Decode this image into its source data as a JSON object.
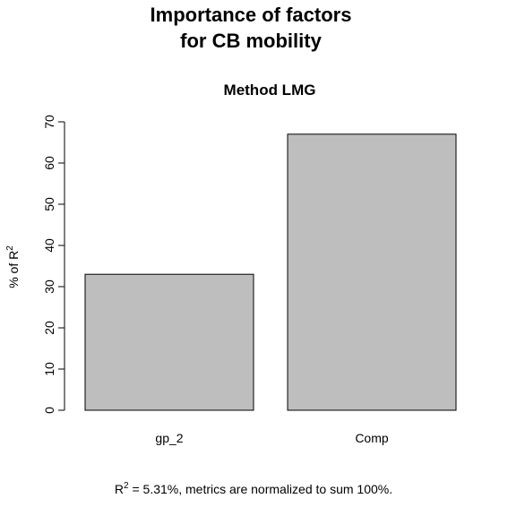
{
  "chart_data": {
    "type": "bar",
    "title_lines": [
      "Importance of factors",
      "for CB mobility"
    ],
    "subtitle": "Method LMG",
    "categories": [
      "gp_2",
      "Comp"
    ],
    "values": [
      33,
      67
    ],
    "ylabel_prefix": "% of R",
    "ylabel_sup": "2",
    "ylim": [
      0,
      70
    ],
    "yticks": [
      0,
      10,
      20,
      30,
      40,
      50,
      60,
      70
    ],
    "grid": false,
    "bar_color": "#bebebe",
    "footnote_prefix": "R",
    "footnote_sup": "2",
    "footnote_text": " = 5.31%, metrics are normalized to sum 100%."
  }
}
